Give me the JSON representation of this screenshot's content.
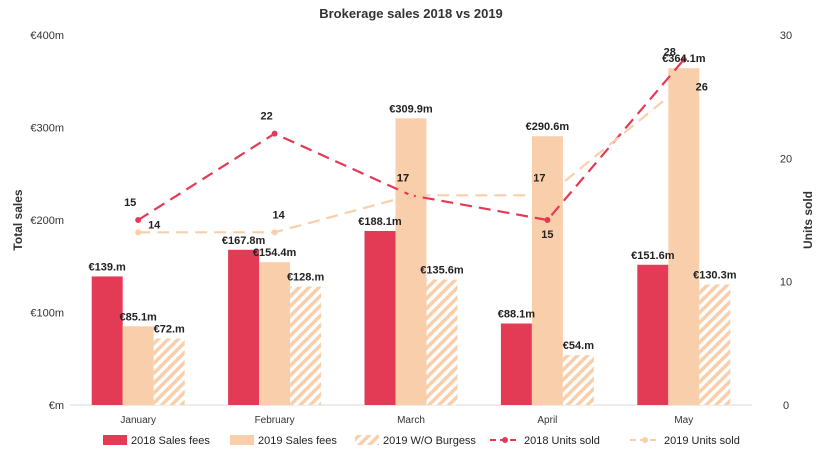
{
  "chart_data": {
    "type": "bar",
    "title": "Brokerage sales 2018 vs 2019",
    "categories": [
      "January",
      "February",
      "March",
      "April",
      "May"
    ],
    "ylabel": "Total sales",
    "y2label": "Units sold",
    "ylim": [
      0,
      400
    ],
    "y2lim": [
      0,
      30
    ],
    "yticks": [
      "€m",
      "€100m",
      "€200m",
      "€300m",
      "€400m"
    ],
    "y2ticks": [
      "0",
      "10",
      "20",
      "30"
    ],
    "series": [
      {
        "name": "2018 Sales fees",
        "kind": "bar",
        "axis": "left",
        "color": "#e33a56",
        "values": [
          139.0,
          167.8,
          188.1,
          88.1,
          151.6
        ],
        "labels": [
          "€139.m",
          "€167.8m",
          "€188.1m",
          "€88.1m",
          "€151.6m"
        ]
      },
      {
        "name": "2019 Sales fees",
        "kind": "bar",
        "axis": "left",
        "color": "#f9cfab",
        "values": [
          85.1,
          154.4,
          309.9,
          290.6,
          364.1
        ],
        "labels": [
          "€85.1m",
          "€154.4m",
          "€309.9m",
          "€290.6m",
          "€364.1m"
        ]
      },
      {
        "name": "2019 W/O Burgess",
        "kind": "bar-hatched",
        "axis": "left",
        "color": "#f9cfab",
        "values": [
          72.0,
          128.0,
          135.6,
          54.0,
          130.3
        ],
        "labels": [
          "€72.m",
          "€128.m",
          "€135.6m",
          "€54.m",
          "€130.3m"
        ]
      },
      {
        "name": "2018 Units sold",
        "kind": "line",
        "axis": "right",
        "color": "#e33a56",
        "values": [
          15,
          22,
          17,
          15,
          28
        ],
        "labels": [
          "15",
          "22",
          "17",
          "15",
          "28"
        ]
      },
      {
        "name": "2019 Units sold",
        "kind": "line",
        "axis": "right",
        "color": "#f9cfab",
        "values": [
          14,
          14,
          17,
          17,
          26
        ],
        "labels": [
          "14",
          "14",
          "17",
          "17",
          "26"
        ]
      }
    ],
    "legend": "bottom",
    "grid": false
  }
}
